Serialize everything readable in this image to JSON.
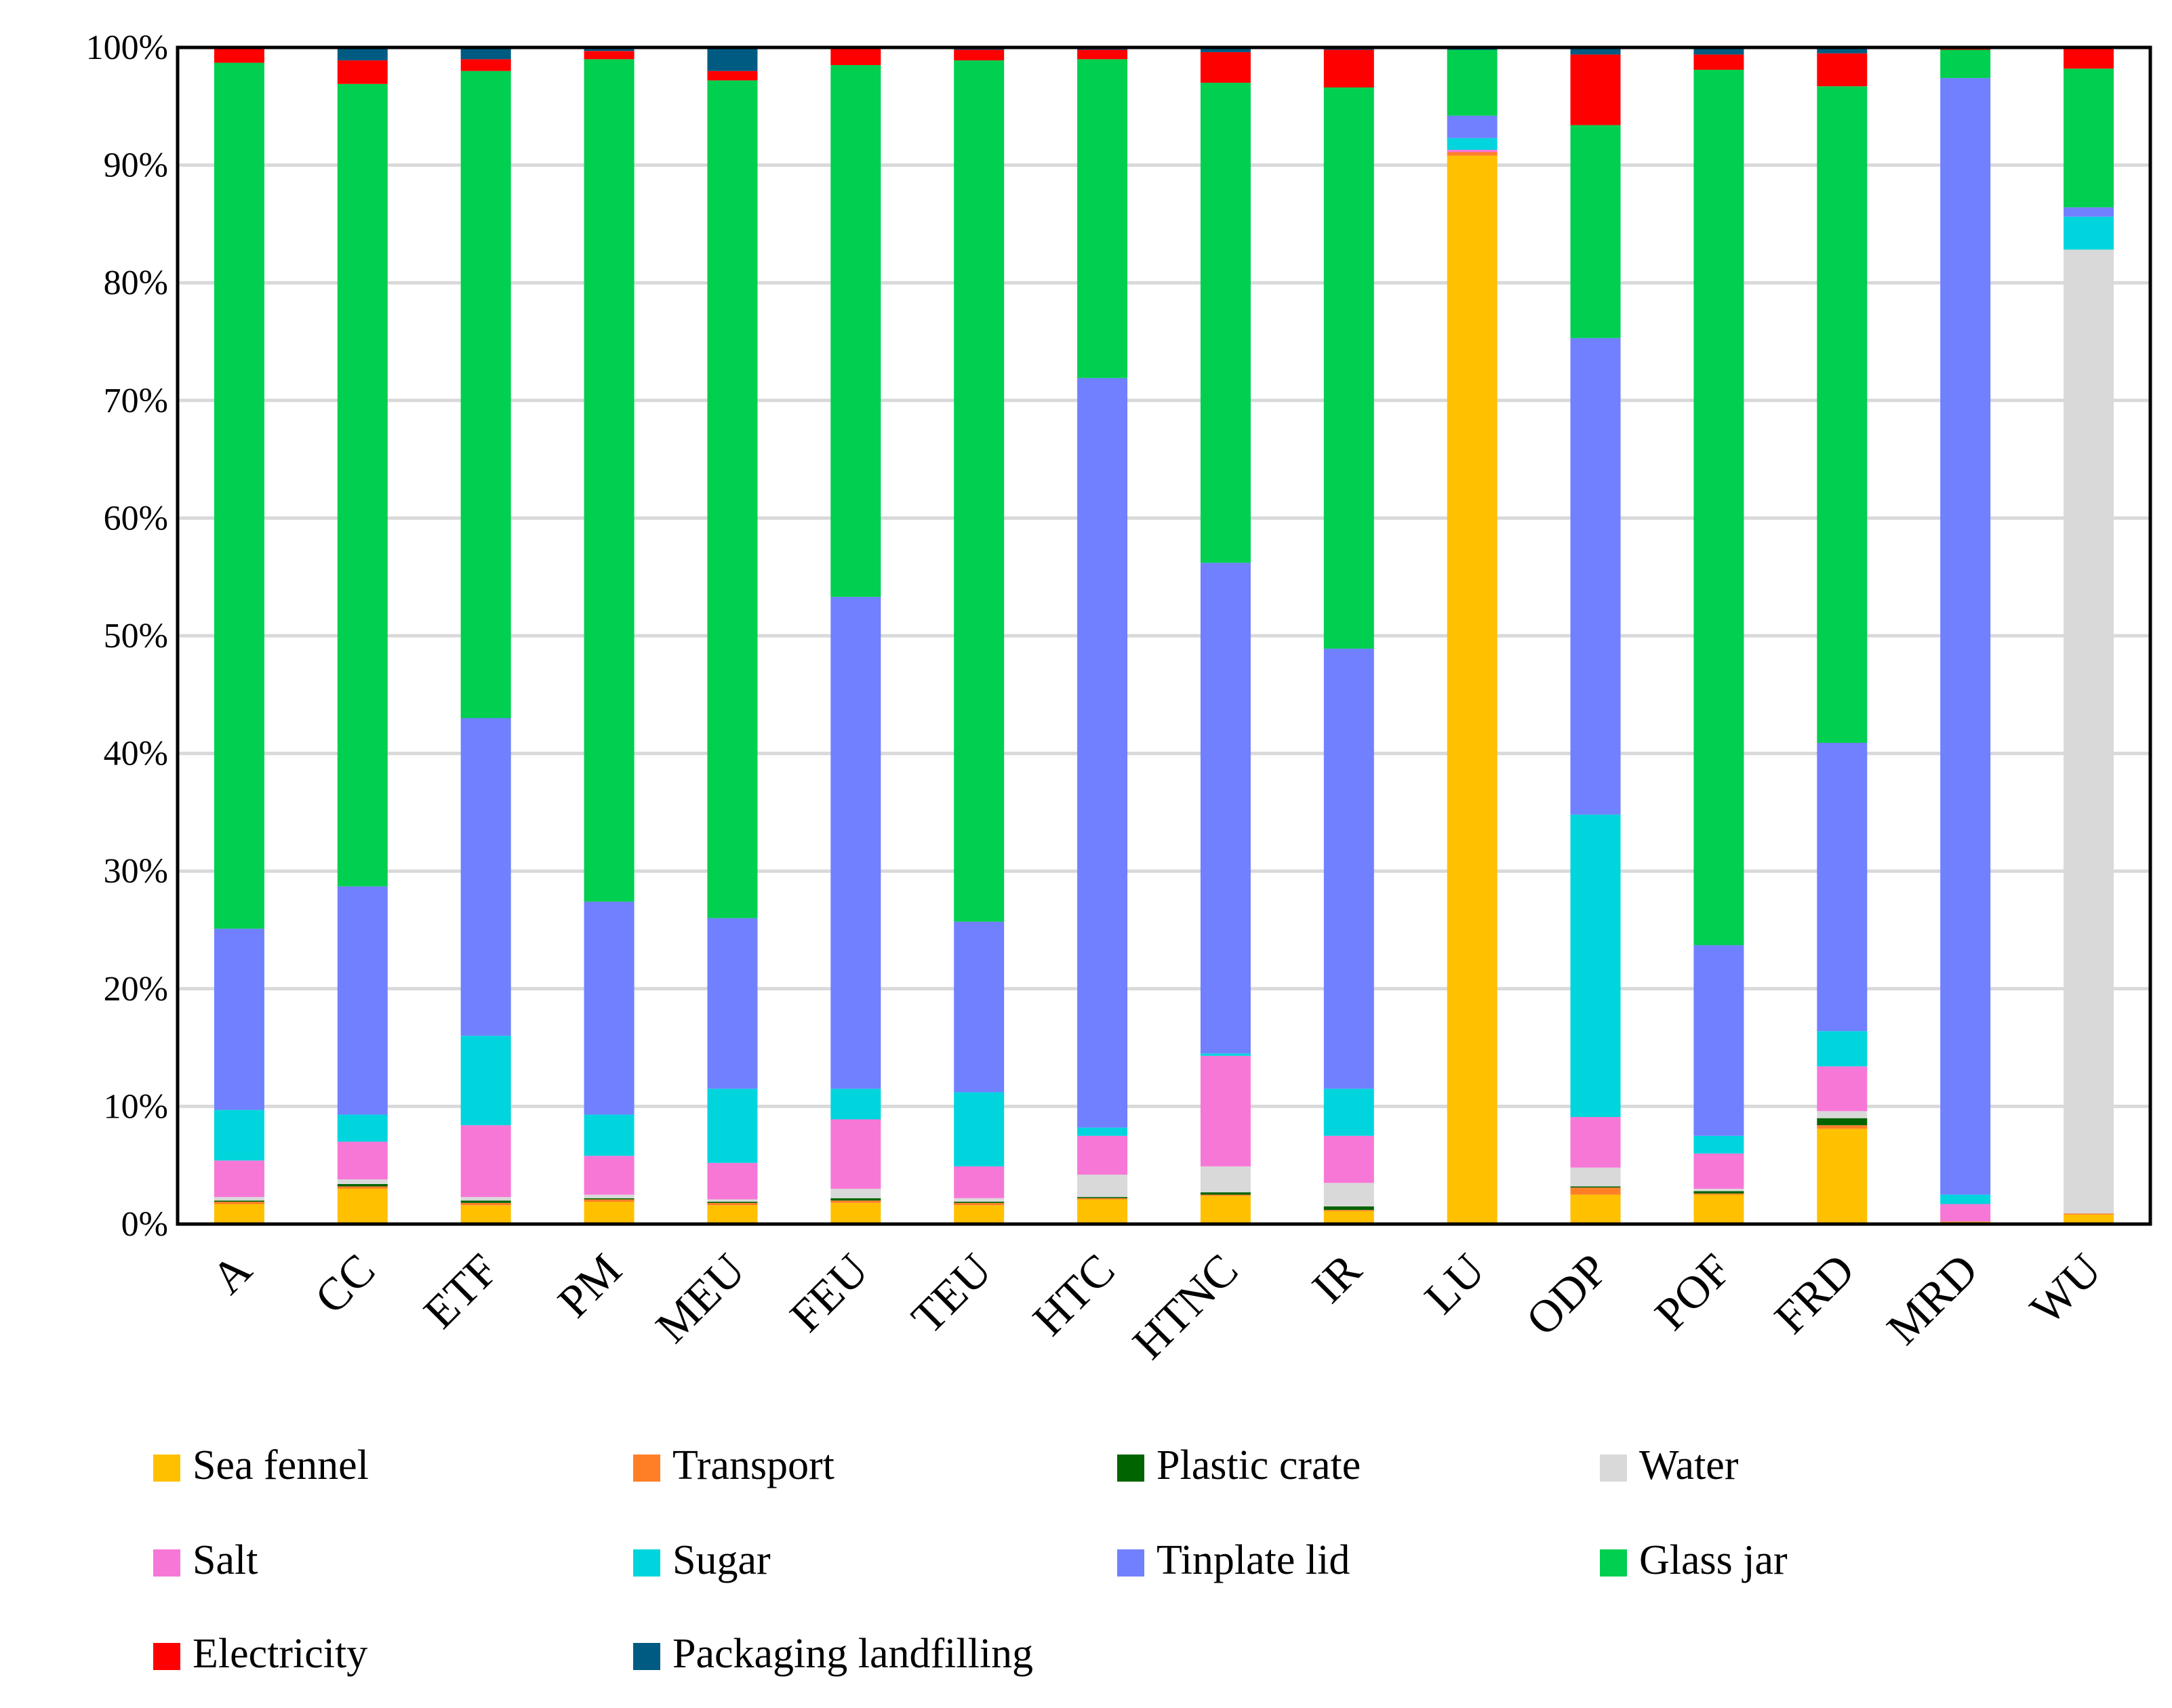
{
  "chart_data": {
    "type": "bar",
    "stacked": true,
    "title": "",
    "xlabel": "",
    "ylabel": "",
    "ylim": [
      0,
      100
    ],
    "yticks": [
      "0%",
      "10%",
      "20%",
      "30%",
      "40%",
      "50%",
      "60%",
      "70%",
      "80%",
      "90%",
      "100%"
    ],
    "grid": true,
    "legend_position": "bottom",
    "categories": [
      "A",
      "CC",
      "ETF",
      "PM",
      "MEU",
      "FEU",
      "TEU",
      "HTC",
      "HTNC",
      "IR",
      "LU",
      "ODP",
      "POF",
      "FRD",
      "MRD",
      "WU"
    ],
    "series": [
      {
        "name": "Sea fennel",
        "color": "#FFC000",
        "values": [
          1.7,
          3.0,
          1.6,
          1.9,
          1.6,
          1.8,
          1.6,
          2.1,
          2.4,
          1.1,
          90.8,
          2.5,
          2.5,
          8.1,
          0.2,
          0.8
        ]
      },
      {
        "name": "Transport",
        "color": "#FF7F27",
        "values": [
          0.2,
          0.2,
          0.2,
          0.2,
          0.2,
          0.2,
          0.2,
          0.1,
          0.1,
          0.1,
          0.3,
          0.6,
          0.1,
          0.3,
          0.0,
          0.1
        ]
      },
      {
        "name": "Plastic crate",
        "color": "#006400",
        "values": [
          0.1,
          0.2,
          0.2,
          0.1,
          0.1,
          0.2,
          0.1,
          0.1,
          0.2,
          0.3,
          0.0,
          0.1,
          0.2,
          0.6,
          0.0,
          0.0
        ]
      },
      {
        "name": "Water",
        "color": "#D9D9D9",
        "values": [
          0.3,
          0.4,
          0.3,
          0.3,
          0.2,
          0.8,
          0.3,
          1.9,
          2.2,
          2.0,
          0.0,
          1.6,
          0.2,
          0.6,
          0.0,
          82.0
        ]
      },
      {
        "name": "Salt",
        "color": "#F777D7",
        "values": [
          3.1,
          3.2,
          6.1,
          3.3,
          3.1,
          5.9,
          2.7,
          3.3,
          9.4,
          4.0,
          0.2,
          4.3,
          3.0,
          3.8,
          1.5,
          0.0
        ]
      },
      {
        "name": "Sugar",
        "color": "#00D5DD",
        "values": [
          4.3,
          2.3,
          7.6,
          3.5,
          6.3,
          2.6,
          6.3,
          0.7,
          0.2,
          4.0,
          1.0,
          25.7,
          1.5,
          3.0,
          0.8,
          2.8
        ]
      },
      {
        "name": "Tinplate lid",
        "color": "#7080FF",
        "values": [
          15.4,
          19.4,
          27.0,
          18.1,
          14.5,
          41.8,
          14.5,
          63.7,
          41.7,
          37.4,
          1.9,
          40.5,
          16.2,
          24.5,
          94.9,
          0.8
        ]
      },
      {
        "name": "Glass jar",
        "color": "#00CF4F",
        "values": [
          73.6,
          68.2,
          55.0,
          71.6,
          71.2,
          45.2,
          73.2,
          27.1,
          40.8,
          47.7,
          5.6,
          18.1,
          74.4,
          55.8,
          2.4,
          11.8
        ]
      },
      {
        "name": "Electricity",
        "color": "#FF0000",
        "values": [
          1.2,
          2.0,
          1.0,
          0.7,
          0.8,
          1.5,
          0.9,
          0.8,
          2.6,
          3.2,
          0.0,
          6.0,
          1.3,
          2.8,
          0.1,
          1.8
        ]
      },
      {
        "name": "Packaging landfilling",
        "color": "#005B83",
        "values": [
          0.1,
          1.1,
          1.0,
          0.3,
          2.0,
          0.0,
          0.2,
          0.2,
          0.4,
          0.2,
          0.2,
          0.6,
          0.6,
          0.5,
          0.1,
          0.0
        ]
      }
    ]
  }
}
